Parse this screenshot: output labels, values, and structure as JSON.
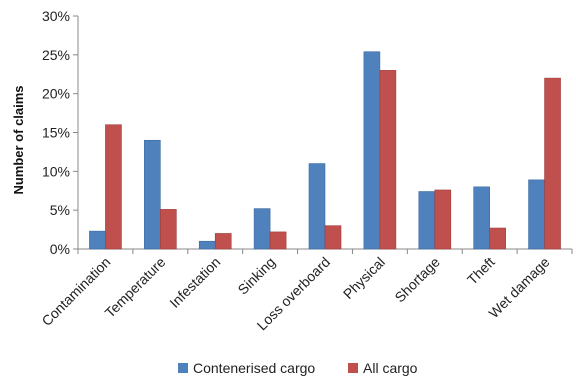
{
  "chart_data": {
    "type": "bar",
    "ylabel": "Number of claims",
    "xlabel": "",
    "ylim": [
      0,
      30
    ],
    "yticks": [
      "0%",
      "5%",
      "10%",
      "15%",
      "20%",
      "25%",
      "30%"
    ],
    "grid": false,
    "legend_position": "bottom",
    "categories": [
      "Contamination",
      "Temperature",
      "Infestation",
      "Sinking",
      "Loss overboard",
      "Physical",
      "Shortage",
      "Theft",
      "Wet damage"
    ],
    "series": [
      {
        "name": "Contenerised cargo",
        "color": "#4F81BD",
        "values": [
          2.3,
          14.0,
          1.0,
          5.2,
          11.0,
          25.4,
          7.4,
          8.0,
          8.9
        ]
      },
      {
        "name": "All cargo",
        "color": "#C0504D",
        "values": [
          16.0,
          5.1,
          2.0,
          2.2,
          3.0,
          23.0,
          7.6,
          2.7,
          22.0
        ]
      }
    ]
  }
}
